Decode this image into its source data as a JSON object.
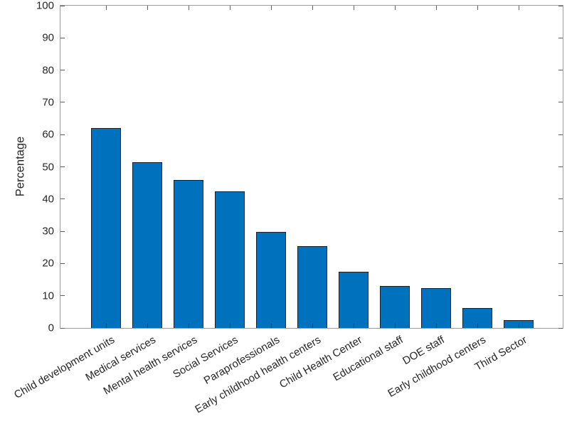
{
  "chart_data": {
    "type": "bar",
    "title": "",
    "xlabel": "",
    "ylabel": "Percentage",
    "categories": [
      "Child development units",
      "Medical services",
      "Mental health services",
      "Social Services",
      "Paraprofessionals",
      "Early childhood health centers",
      "Child Health Center",
      "Educational staff",
      "DOE staff",
      "Early childhood centers",
      "Third Sector"
    ],
    "values": [
      62,
      51.5,
      46,
      42.3,
      29.8,
      25.5,
      17.4,
      13.1,
      12.3,
      6.2,
      2.4
    ],
    "ylim": [
      0,
      100
    ],
    "ytick_step": 10,
    "x_tick_label_rotation_deg": 30,
    "grid": false,
    "legend": null,
    "colors": {
      "bar_fill": "#0072bd",
      "bar_edge": "#1f1f1f",
      "axis_box": "#9c9c9c",
      "tick_mark": "#5f5f5f",
      "tick_text": "#262626",
      "background": "#ffffff"
    }
  }
}
